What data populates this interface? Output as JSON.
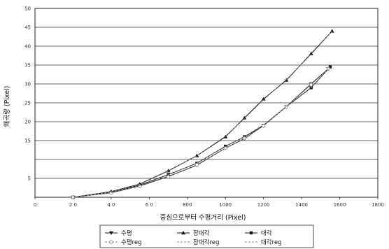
{
  "chart_data": {
    "type": "line",
    "xlabel": "중심으로부터 수평거리 (Pixel)",
    "ylabel": "왜곡량 (Pixel)",
    "xlim": [
      0,
      1800
    ],
    "ylim": [
      0,
      50
    ],
    "x_ticks": [
      "0",
      "2 0",
      "4 0",
      "6 0",
      "800",
      "1000",
      "1200",
      "1400",
      "1600",
      "1800"
    ],
    "y_ticks": [
      "",
      "5",
      "",
      "15",
      "20",
      "25",
      "30",
      "35",
      "40",
      "45",
      "50"
    ],
    "grid": "horizontal",
    "legend_position": "bottom",
    "series": [
      {
        "name": "수평",
        "color": "#1a1a1a",
        "marker": "triangle-down",
        "x": [
          200,
          400,
          550,
          700,
          850,
          1000,
          1100,
          1200,
          1320,
          1450,
          1540
        ],
        "y": [
          0,
          1.2,
          3,
          5.5,
          8.5,
          13,
          15.5,
          19,
          24,
          30,
          34
        ]
      },
      {
        "name": "장대각",
        "color": "#1a1a1a",
        "marker": "triangle-up",
        "x": [
          200,
          400,
          550,
          700,
          850,
          1000,
          1100,
          1200,
          1320,
          1450,
          1560
        ],
        "y": [
          0,
          1.5,
          3.5,
          7,
          11,
          16,
          21,
          26,
          31,
          38,
          44
        ]
      },
      {
        "name": "대각",
        "color": "#1a1a1a",
        "marker": "square",
        "x": [
          200,
          400,
          550,
          700,
          850,
          1000,
          1100,
          1200,
          1320,
          1450,
          1550
        ],
        "y": [
          0,
          1.3,
          3.2,
          6,
          9,
          13.5,
          16,
          19,
          24,
          29,
          34.5
        ]
      },
      {
        "name": "수평reg",
        "color": "#8a8a8a",
        "marker": "circle",
        "x": [
          200,
          400,
          550,
          700,
          850,
          1000,
          1100,
          1200,
          1320,
          1450,
          1540
        ],
        "y": [
          0,
          1.1,
          2.9,
          5.4,
          8.6,
          13,
          15.6,
          18.9,
          24,
          29.8,
          34
        ]
      },
      {
        "name": "장대각reg",
        "color": "#8a8a8a",
        "marker": "none",
        "x": [
          200,
          400,
          550,
          700,
          850,
          1000,
          1100,
          1200,
          1320,
          1450,
          1560
        ],
        "y": [
          0,
          1.4,
          3.4,
          6.9,
          11,
          16.2,
          20.8,
          25.8,
          31.2,
          37.8,
          44
        ]
      },
      {
        "name": "대각reg",
        "color": "#8a8a8a",
        "marker": "none",
        "x": [
          200,
          400,
          550,
          700,
          850,
          1000,
          1100,
          1200,
          1320,
          1450,
          1550
        ],
        "y": [
          0,
          1.2,
          3.1,
          5.9,
          9.1,
          13.4,
          16.1,
          19.2,
          24.1,
          29.1,
          34.5
        ]
      }
    ]
  }
}
